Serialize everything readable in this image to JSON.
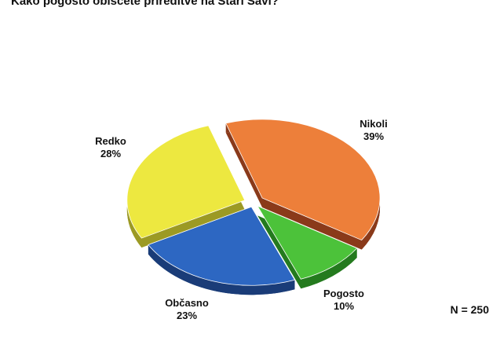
{
  "title": "Kako pogosto obiščete prireditve na Stari Savi?",
  "sample_size": "N = 250",
  "chart_data": {
    "type": "pie",
    "title": "Kako pogosto obiščete prireditve na Stari Savi?",
    "categories": [
      "Nikoli",
      "Pogosto",
      "Občasno",
      "Redko"
    ],
    "values": [
      39,
      10,
      23,
      28
    ],
    "value_labels": [
      "39%",
      "10%",
      "23%",
      "28%"
    ],
    "unit": "%",
    "style": "3d-exploded",
    "colors": {
      "Nikoli": "#ED7F3A",
      "Pogosto": "#4CC23A",
      "Občasno": "#2D67C2",
      "Redko": "#EDE840"
    },
    "side_colors": {
      "Nikoli": "#8A3A1A",
      "Pogosto": "#247A1E",
      "Občasno": "#1A3C78",
      "Redko": "#9C9A24"
    },
    "legend": "none",
    "note": "N = 250"
  }
}
